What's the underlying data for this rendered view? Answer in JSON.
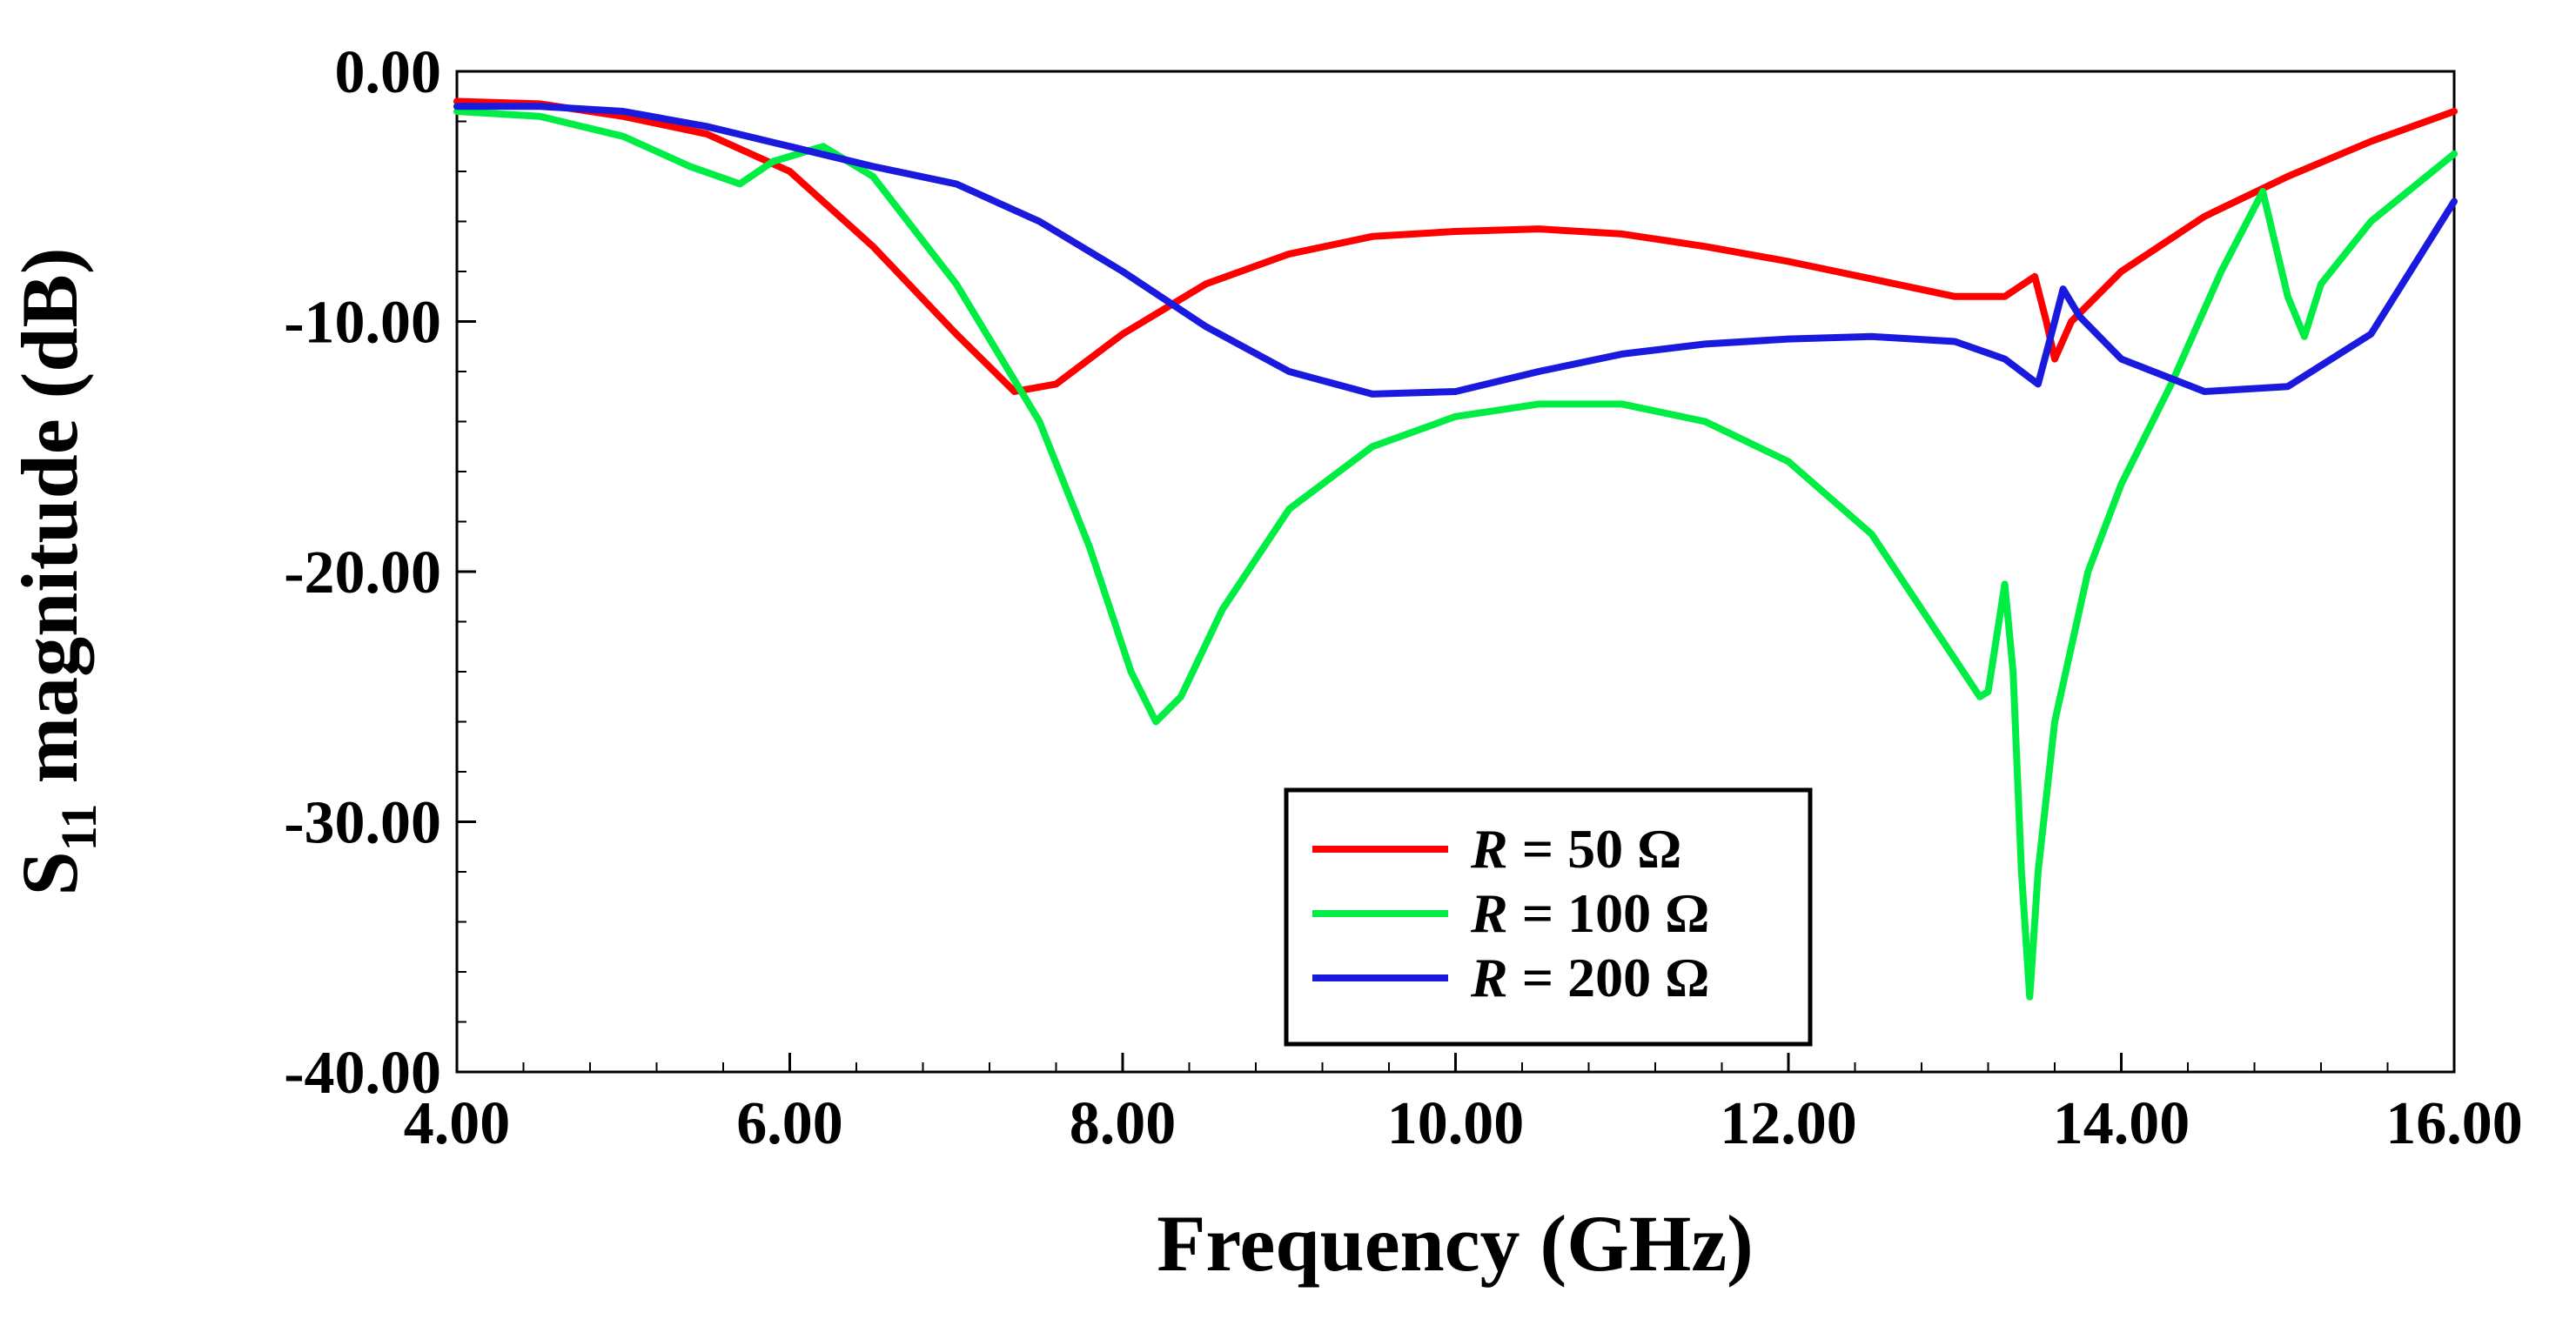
{
  "chart_data": {
    "type": "line",
    "title": "",
    "xlabel": "Frequency (GHz)",
    "ylabel": {
      "main": "S",
      "sub": "11",
      "rest": " magnitude (dB)"
    },
    "xlim": [
      4.0,
      16.0
    ],
    "ylim": [
      -40.0,
      0.0
    ],
    "x_ticks": [
      4,
      6,
      8,
      10,
      12,
      14,
      16
    ],
    "x_tick_labels": [
      "4.00",
      "6.00",
      "8.00",
      "10.00",
      "12.00",
      "14.00",
      "16.00"
    ],
    "y_ticks": [
      0,
      -10,
      -20,
      -30,
      -40
    ],
    "y_tick_labels": [
      "0.00",
      "-10.00",
      "-20.00",
      "-30.00",
      "-40.00"
    ],
    "grid": false,
    "legend": {
      "position": "bottom-center",
      "entries": [
        {
          "var": "R",
          "text": " = 50 Ω"
        },
        {
          "var": "R",
          "text": " = 100 Ω"
        },
        {
          "var": "R",
          "text": " = 200 Ω"
        }
      ]
    },
    "series": [
      {
        "name": "R = 50 Ω",
        "color": "#ff0000",
        "points": [
          [
            4.0,
            -1.2
          ],
          [
            4.5,
            -1.3
          ],
          [
            5.0,
            -1.8
          ],
          [
            5.5,
            -2.5
          ],
          [
            6.0,
            -4.0
          ],
          [
            6.5,
            -7.0
          ],
          [
            7.0,
            -10.5
          ],
          [
            7.35,
            -12.8
          ],
          [
            7.6,
            -12.5
          ],
          [
            8.0,
            -10.5
          ],
          [
            8.5,
            -8.5
          ],
          [
            9.0,
            -7.3
          ],
          [
            9.5,
            -6.6
          ],
          [
            10.0,
            -6.4
          ],
          [
            10.5,
            -6.3
          ],
          [
            11.0,
            -6.5
          ],
          [
            11.5,
            -7.0
          ],
          [
            12.0,
            -7.6
          ],
          [
            12.5,
            -8.3
          ],
          [
            13.0,
            -9.0
          ],
          [
            13.3,
            -9.0
          ],
          [
            13.48,
            -8.2
          ],
          [
            13.55,
            -10.0
          ],
          [
            13.6,
            -11.5
          ],
          [
            13.7,
            -10.0
          ],
          [
            14.0,
            -8.0
          ],
          [
            14.5,
            -5.8
          ],
          [
            15.0,
            -4.2
          ],
          [
            15.5,
            -2.8
          ],
          [
            16.0,
            -1.6
          ]
        ]
      },
      {
        "name": "R = 100 Ω",
        "color": "#00ee44",
        "points": [
          [
            4.0,
            -1.6
          ],
          [
            4.5,
            -1.8
          ],
          [
            5.0,
            -2.6
          ],
          [
            5.4,
            -3.8
          ],
          [
            5.7,
            -4.5
          ],
          [
            5.9,
            -3.6
          ],
          [
            6.2,
            -3.0
          ],
          [
            6.5,
            -4.2
          ],
          [
            7.0,
            -8.5
          ],
          [
            7.5,
            -14.0
          ],
          [
            7.8,
            -19.0
          ],
          [
            8.05,
            -24.0
          ],
          [
            8.2,
            -26.0
          ],
          [
            8.35,
            -25.0
          ],
          [
            8.6,
            -21.5
          ],
          [
            9.0,
            -17.5
          ],
          [
            9.5,
            -15.0
          ],
          [
            10.0,
            -13.8
          ],
          [
            10.5,
            -13.3
          ],
          [
            11.0,
            -13.3
          ],
          [
            11.5,
            -14.0
          ],
          [
            12.0,
            -15.6
          ],
          [
            12.5,
            -18.5
          ],
          [
            13.0,
            -23.5
          ],
          [
            13.15,
            -25.0
          ],
          [
            13.2,
            -24.8
          ],
          [
            13.3,
            -20.5
          ],
          [
            13.35,
            -24.0
          ],
          [
            13.4,
            -32.0
          ],
          [
            13.45,
            -37.0
          ],
          [
            13.5,
            -32.0
          ],
          [
            13.6,
            -26.0
          ],
          [
            13.8,
            -20.0
          ],
          [
            14.0,
            -16.5
          ],
          [
            14.3,
            -12.5
          ],
          [
            14.6,
            -8.0
          ],
          [
            14.85,
            -4.8
          ],
          [
            15.0,
            -9.0
          ],
          [
            15.1,
            -10.6
          ],
          [
            15.2,
            -8.5
          ],
          [
            15.5,
            -6.0
          ],
          [
            16.0,
            -3.3
          ]
        ]
      },
      {
        "name": "R = 200 Ω",
        "color": "#1a1adf",
        "points": [
          [
            4.0,
            -1.4
          ],
          [
            4.5,
            -1.4
          ],
          [
            5.0,
            -1.6
          ],
          [
            5.5,
            -2.2
          ],
          [
            6.0,
            -3.0
          ],
          [
            6.5,
            -3.8
          ],
          [
            7.0,
            -4.5
          ],
          [
            7.5,
            -6.0
          ],
          [
            8.0,
            -8.0
          ],
          [
            8.5,
            -10.2
          ],
          [
            9.0,
            -12.0
          ],
          [
            9.5,
            -12.9
          ],
          [
            10.0,
            -12.8
          ],
          [
            10.5,
            -12.0
          ],
          [
            11.0,
            -11.3
          ],
          [
            11.5,
            -10.9
          ],
          [
            12.0,
            -10.7
          ],
          [
            12.5,
            -10.6
          ],
          [
            13.0,
            -10.8
          ],
          [
            13.3,
            -11.5
          ],
          [
            13.5,
            -12.5
          ],
          [
            13.6,
            -10.0
          ],
          [
            13.65,
            -8.7
          ],
          [
            13.75,
            -9.8
          ],
          [
            14.0,
            -11.5
          ],
          [
            14.5,
            -12.8
          ],
          [
            15.0,
            -12.6
          ],
          [
            15.5,
            -10.5
          ],
          [
            16.0,
            -5.2
          ]
        ]
      }
    ]
  }
}
